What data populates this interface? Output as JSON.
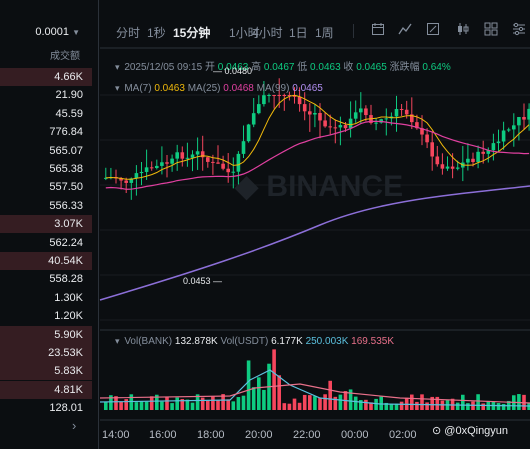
{
  "left_panel": {
    "precision": "0.0001",
    "volume_header": "成交额",
    "volumes": [
      {
        "value": "4.66K",
        "side": "sell"
      },
      {
        "value": "21.90",
        "side": "none"
      },
      {
        "value": "45.59",
        "side": "none"
      },
      {
        "value": "776.84",
        "side": "none"
      },
      {
        "value": "565.07",
        "side": "none"
      },
      {
        "value": "565.38",
        "side": "none"
      },
      {
        "value": "557.50",
        "side": "none"
      },
      {
        "value": "556.33",
        "side": "none"
      },
      {
        "value": "3.07K",
        "side": "sell"
      },
      {
        "value": "562.24",
        "side": "none"
      },
      {
        "value": "40.54K",
        "side": "sell"
      },
      {
        "value": "558.28",
        "side": "none"
      },
      {
        "value": "1.30K",
        "side": "none"
      },
      {
        "value": "1.20K",
        "side": "none"
      },
      {
        "value": "5.90K",
        "side": "sell"
      },
      {
        "value": "23.53K",
        "side": "sell"
      },
      {
        "value": "5.83K",
        "side": "sell"
      },
      {
        "value": "4.81K",
        "side": "sell"
      },
      {
        "value": "128.01",
        "side": "none"
      }
    ]
  },
  "toolbar": {
    "timeframes": [
      {
        "label": "分时",
        "active": false
      },
      {
        "label": "1秒",
        "active": false
      },
      {
        "label": "15分钟",
        "active": true
      },
      {
        "label": "1小时",
        "active": false
      },
      {
        "label": "4小时",
        "active": false
      },
      {
        "label": "1日",
        "active": false
      },
      {
        "label": "1周",
        "active": false
      }
    ],
    "icons": [
      "calendar-icon",
      "indicator-icon",
      "draw-tool-icon",
      "candle-style-icon",
      "grid-icon",
      "settings-icon"
    ]
  },
  "ohlc": {
    "datetime": "2025/12/05 09:15",
    "open_label": "开",
    "open": "0.0463",
    "high_label": "高",
    "high": "0.0467",
    "low_label": "低",
    "low": "0.0463",
    "close_label": "收",
    "close": "0.0465",
    "change_label": "涨跌幅",
    "change": "0.64%"
  },
  "ma": {
    "ma7_label": "MA(7)",
    "ma7": "0.0463",
    "ma25_label": "MA(25)",
    "ma25": "0.0468",
    "ma99_label": "MA(99)",
    "ma99": "0.0465",
    "colors": {
      "ma7": "#f0b90b",
      "ma25": "#e040a0",
      "ma99": "#8c6fd8"
    }
  },
  "volume_legend": {
    "vol_bank_label": "Vol(BANK)",
    "vol_bank": "132.878K",
    "vol_usdt_label": "Vol(USDT)",
    "vol_usdt": "6.177K",
    "ma1": "250.003K",
    "ma2": "169.535K",
    "colors": {
      "ma1": "#5bc0de",
      "ma2": "#e8708a"
    }
  },
  "markers": {
    "high": "0.0480",
    "low": "0.0453"
  },
  "time_axis": [
    "14:00",
    "16:00",
    "18:00",
    "20:00",
    "22:00",
    "00:00",
    "02:00"
  ],
  "watermark": "@0xQingyun",
  "colors": {
    "up": "#0ecb81",
    "down": "#f6465d",
    "bg": "#0b0e11",
    "text_dim": "#848e9c"
  }
}
